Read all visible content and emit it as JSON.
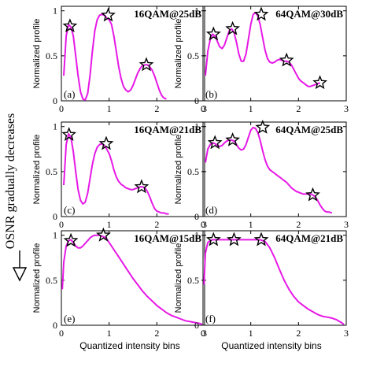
{
  "side_annotation": {
    "text": "OSNR gradually decreases"
  },
  "shared": {
    "xlabel": "Quantized intensity bins",
    "ylabel": "Normalized profile",
    "xlim": [
      0,
      3
    ],
    "ylim": [
      0,
      1.05
    ],
    "xticks": [
      "0",
      "1",
      "2",
      "3"
    ],
    "yticks": [
      "0",
      "0.5",
      "1"
    ],
    "line_color": "#e619e6",
    "marker_color": "#000000"
  },
  "chart_data": [
    {
      "type": "line",
      "panel_label": "(a)",
      "title": "16QAM@25dB",
      "x": [
        0.05,
        0.1,
        0.15,
        0.2,
        0.25,
        0.3,
        0.35,
        0.4,
        0.45,
        0.5,
        0.55,
        0.6,
        0.65,
        0.7,
        0.75,
        0.8,
        0.85,
        0.9,
        0.95,
        1.0,
        1.05,
        1.1,
        1.15,
        1.2,
        1.25,
        1.3,
        1.35,
        1.4,
        1.45,
        1.5,
        1.55,
        1.6,
        1.65,
        1.7,
        1.75,
        1.8,
        1.85,
        1.9,
        1.95,
        2.0,
        2.05,
        2.1,
        2.15,
        2.2
      ],
      "y": [
        0.28,
        0.72,
        0.85,
        0.82,
        0.72,
        0.5,
        0.28,
        0.1,
        0.02,
        0.01,
        0.08,
        0.28,
        0.55,
        0.78,
        0.9,
        0.95,
        0.96,
        0.95,
        0.92,
        0.9,
        0.85,
        0.72,
        0.55,
        0.38,
        0.25,
        0.16,
        0.12,
        0.1,
        0.12,
        0.17,
        0.24,
        0.31,
        0.36,
        0.39,
        0.4,
        0.4,
        0.38,
        0.34,
        0.28,
        0.2,
        0.12,
        0.06,
        0.03,
        0.02
      ],
      "markers": {
        "x": [
          0.18,
          0.98,
          1.78
        ],
        "y": [
          0.83,
          0.95,
          0.4
        ]
      }
    },
    {
      "type": "line",
      "panel_label": "(b)",
      "title": "64QAM@30dB",
      "x": [
        0.05,
        0.1,
        0.15,
        0.2,
        0.25,
        0.3,
        0.35,
        0.4,
        0.45,
        0.5,
        0.55,
        0.6,
        0.65,
        0.7,
        0.75,
        0.8,
        0.85,
        0.9,
        0.95,
        1.0,
        1.05,
        1.1,
        1.15,
        1.2,
        1.25,
        1.3,
        1.35,
        1.4,
        1.45,
        1.5,
        1.55,
        1.6,
        1.65,
        1.7,
        1.75,
        1.8,
        1.85,
        1.9,
        1.95,
        2.0,
        2.05,
        2.1,
        2.15,
        2.2,
        2.25,
        2.3,
        2.35,
        2.4,
        2.45
      ],
      "y": [
        0.28,
        0.55,
        0.68,
        0.74,
        0.72,
        0.66,
        0.6,
        0.58,
        0.62,
        0.7,
        0.78,
        0.8,
        0.76,
        0.65,
        0.52,
        0.44,
        0.44,
        0.52,
        0.68,
        0.85,
        0.96,
        0.98,
        0.94,
        0.84,
        0.7,
        0.56,
        0.47,
        0.43,
        0.42,
        0.43,
        0.45,
        0.46,
        0.45,
        0.44,
        0.44,
        0.43,
        0.4,
        0.35,
        0.3,
        0.25,
        0.22,
        0.2,
        0.18,
        0.16,
        0.16,
        0.17,
        0.18,
        0.19,
        0.2
      ],
      "markers": {
        "x": [
          0.22,
          0.62,
          1.22,
          1.75,
          2.45
        ],
        "y": [
          0.74,
          0.8,
          0.96,
          0.45,
          0.2
        ]
      }
    },
    {
      "type": "line",
      "panel_label": "(c)",
      "title": "16QAM@21dB",
      "x": [
        0.05,
        0.1,
        0.15,
        0.2,
        0.25,
        0.3,
        0.35,
        0.4,
        0.45,
        0.5,
        0.55,
        0.6,
        0.65,
        0.7,
        0.75,
        0.8,
        0.85,
        0.9,
        0.95,
        1.0,
        1.05,
        1.1,
        1.15,
        1.2,
        1.25,
        1.3,
        1.35,
        1.4,
        1.45,
        1.5,
        1.55,
        1.6,
        1.65,
        1.7,
        1.75,
        1.8,
        1.85,
        1.9,
        1.95,
        2.0,
        2.05,
        2.1,
        2.15,
        2.2,
        2.25
      ],
      "y": [
        0.35,
        0.8,
        0.92,
        0.88,
        0.72,
        0.5,
        0.3,
        0.18,
        0.14,
        0.16,
        0.26,
        0.42,
        0.58,
        0.7,
        0.77,
        0.8,
        0.81,
        0.79,
        0.75,
        0.7,
        0.62,
        0.52,
        0.44,
        0.39,
        0.36,
        0.34,
        0.32,
        0.31,
        0.3,
        0.3,
        0.31,
        0.32,
        0.33,
        0.33,
        0.32,
        0.28,
        0.22,
        0.15,
        0.09,
        0.06,
        0.05,
        0.04,
        0.04,
        0.03,
        0.03
      ],
      "markers": {
        "x": [
          0.16,
          0.94,
          1.68
        ],
        "y": [
          0.91,
          0.81,
          0.33
        ]
      }
    },
    {
      "type": "line",
      "panel_label": "(d)",
      "title": "64QAM@25dB",
      "x": [
        0.05,
        0.1,
        0.15,
        0.2,
        0.25,
        0.3,
        0.35,
        0.4,
        0.45,
        0.5,
        0.55,
        0.6,
        0.65,
        0.7,
        0.75,
        0.8,
        0.85,
        0.9,
        0.95,
        1.0,
        1.05,
        1.1,
        1.15,
        1.2,
        1.25,
        1.3,
        1.35,
        1.4,
        1.45,
        1.5,
        1.55,
        1.6,
        1.65,
        1.7,
        1.75,
        1.8,
        1.85,
        1.9,
        1.95,
        2.0,
        2.05,
        2.1,
        2.15,
        2.2,
        2.25,
        2.3,
        2.35,
        2.4,
        2.45,
        2.5,
        2.55,
        2.6,
        2.65,
        2.7
      ],
      "y": [
        0.6,
        0.75,
        0.8,
        0.82,
        0.81,
        0.79,
        0.78,
        0.79,
        0.82,
        0.84,
        0.85,
        0.85,
        0.84,
        0.8,
        0.76,
        0.74,
        0.75,
        0.8,
        0.88,
        0.96,
        0.99,
        0.98,
        0.93,
        0.84,
        0.73,
        0.63,
        0.56,
        0.52,
        0.5,
        0.48,
        0.46,
        0.44,
        0.42,
        0.4,
        0.38,
        0.35,
        0.32,
        0.3,
        0.28,
        0.27,
        0.26,
        0.25,
        0.25,
        0.25,
        0.25,
        0.24,
        0.22,
        0.18,
        0.13,
        0.09,
        0.06,
        0.05,
        0.05,
        0.04
      ],
      "markers": {
        "x": [
          0.25,
          0.62,
          1.25,
          2.3
        ],
        "y": [
          0.82,
          0.85,
          0.99,
          0.24
        ]
      }
    },
    {
      "type": "line",
      "panel_label": "(e)",
      "title": "16QAM@15dB",
      "x": [
        0.02,
        0.05,
        0.1,
        0.15,
        0.2,
        0.25,
        0.3,
        0.35,
        0.4,
        0.45,
        0.5,
        0.55,
        0.6,
        0.65,
        0.7,
        0.75,
        0.8,
        0.85,
        0.9,
        0.95,
        1.0,
        1.1,
        1.2,
        1.3,
        1.4,
        1.5,
        1.6,
        1.7,
        1.8,
        1.9,
        2.0,
        2.1,
        2.2,
        2.3,
        2.4,
        2.5,
        2.6,
        2.7,
        2.8,
        2.9,
        2.95
      ],
      "y": [
        0.4,
        0.7,
        0.88,
        0.94,
        0.95,
        0.92,
        0.88,
        0.86,
        0.86,
        0.88,
        0.91,
        0.94,
        0.97,
        0.99,
        1.0,
        1.0,
        1.0,
        0.99,
        0.98,
        0.96,
        0.92,
        0.84,
        0.76,
        0.68,
        0.6,
        0.52,
        0.45,
        0.38,
        0.32,
        0.27,
        0.22,
        0.18,
        0.14,
        0.11,
        0.09,
        0.07,
        0.05,
        0.04,
        0.03,
        0.02,
        0.01
      ],
      "markers": {
        "x": [
          0.2,
          0.88
        ],
        "y": [
          0.94,
          1.0
        ]
      }
    },
    {
      "type": "line",
      "panel_label": "(f)",
      "title": "64QAM@21dB",
      "x": [
        0.02,
        0.05,
        0.1,
        0.15,
        0.2,
        0.3,
        0.4,
        0.5,
        0.6,
        0.7,
        0.8,
        0.9,
        1.0,
        1.1,
        1.2,
        1.3,
        1.4,
        1.5,
        1.6,
        1.7,
        1.8,
        1.9,
        2.0,
        2.1,
        2.2,
        2.3,
        2.4,
        2.5,
        2.6,
        2.7,
        2.8,
        2.9,
        2.95
      ],
      "y": [
        0.45,
        0.8,
        0.92,
        0.94,
        0.95,
        0.95,
        0.95,
        0.95,
        0.95,
        0.95,
        0.95,
        0.95,
        0.95,
        0.95,
        0.95,
        0.93,
        0.86,
        0.75,
        0.62,
        0.5,
        0.4,
        0.32,
        0.26,
        0.22,
        0.18,
        0.15,
        0.12,
        0.1,
        0.09,
        0.08,
        0.06,
        0.03,
        0.01
      ],
      "markers": {
        "x": [
          0.22,
          0.65,
          1.22
        ],
        "y": [
          0.95,
          0.95,
          0.95
        ]
      }
    }
  ]
}
